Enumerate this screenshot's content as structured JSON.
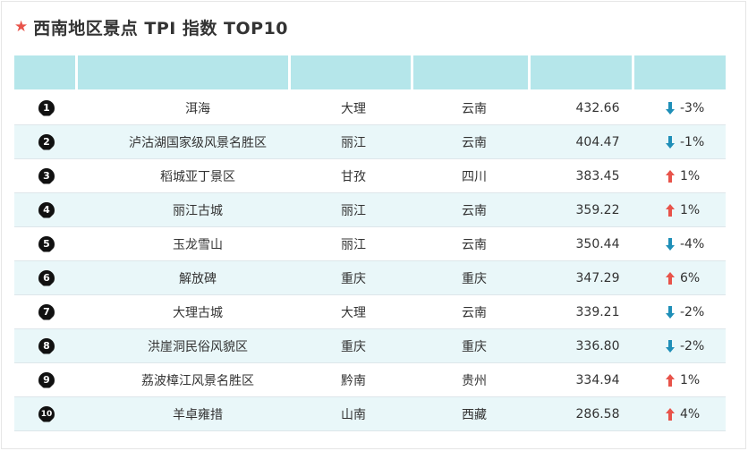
{
  "header": {
    "star_icon": "star-icon",
    "title": "西南地区景点 TPI 指数 TOP10"
  },
  "colors": {
    "header_bg": "#b5e6ea",
    "alt_row_bg": "#e9f7f9",
    "up": "#e8534a",
    "down": "#1f8fb8"
  },
  "rows": [
    {
      "rank": "1",
      "name": "洱海",
      "city": "大理",
      "province": "云南",
      "index": "432.66",
      "trend": "down",
      "change": "-3%"
    },
    {
      "rank": "2",
      "name": "泸沽湖国家级风景名胜区",
      "city": "丽江",
      "province": "云南",
      "index": "404.47",
      "trend": "down",
      "change": "-1%"
    },
    {
      "rank": "3",
      "name": "稻城亚丁景区",
      "city": "甘孜",
      "province": "四川",
      "index": "383.45",
      "trend": "up",
      "change": "1%"
    },
    {
      "rank": "4",
      "name": "丽江古城",
      "city": "丽江",
      "province": "云南",
      "index": "359.22",
      "trend": "up",
      "change": "1%"
    },
    {
      "rank": "5",
      "name": "玉龙雪山",
      "city": "丽江",
      "province": "云南",
      "index": "350.44",
      "trend": "down",
      "change": "-4%"
    },
    {
      "rank": "6",
      "name": "解放碑",
      "city": "重庆",
      "province": "重庆",
      "index": "347.29",
      "trend": "up",
      "change": "6%"
    },
    {
      "rank": "7",
      "name": "大理古城",
      "city": "大理",
      "province": "云南",
      "index": "339.21",
      "trend": "down",
      "change": "-2%"
    },
    {
      "rank": "8",
      "name": "洪崖洞民俗风貌区",
      "city": "重庆",
      "province": "重庆",
      "index": "336.80",
      "trend": "down",
      "change": "-2%"
    },
    {
      "rank": "9",
      "name": "荔波樟江风景名胜区",
      "city": "黔南",
      "province": "贵州",
      "index": "334.94",
      "trend": "up",
      "change": "1%"
    },
    {
      "rank": "10",
      "name": "羊卓雍措",
      "city": "山南",
      "province": "西藏",
      "index": "286.58",
      "trend": "up",
      "change": "4%"
    }
  ]
}
